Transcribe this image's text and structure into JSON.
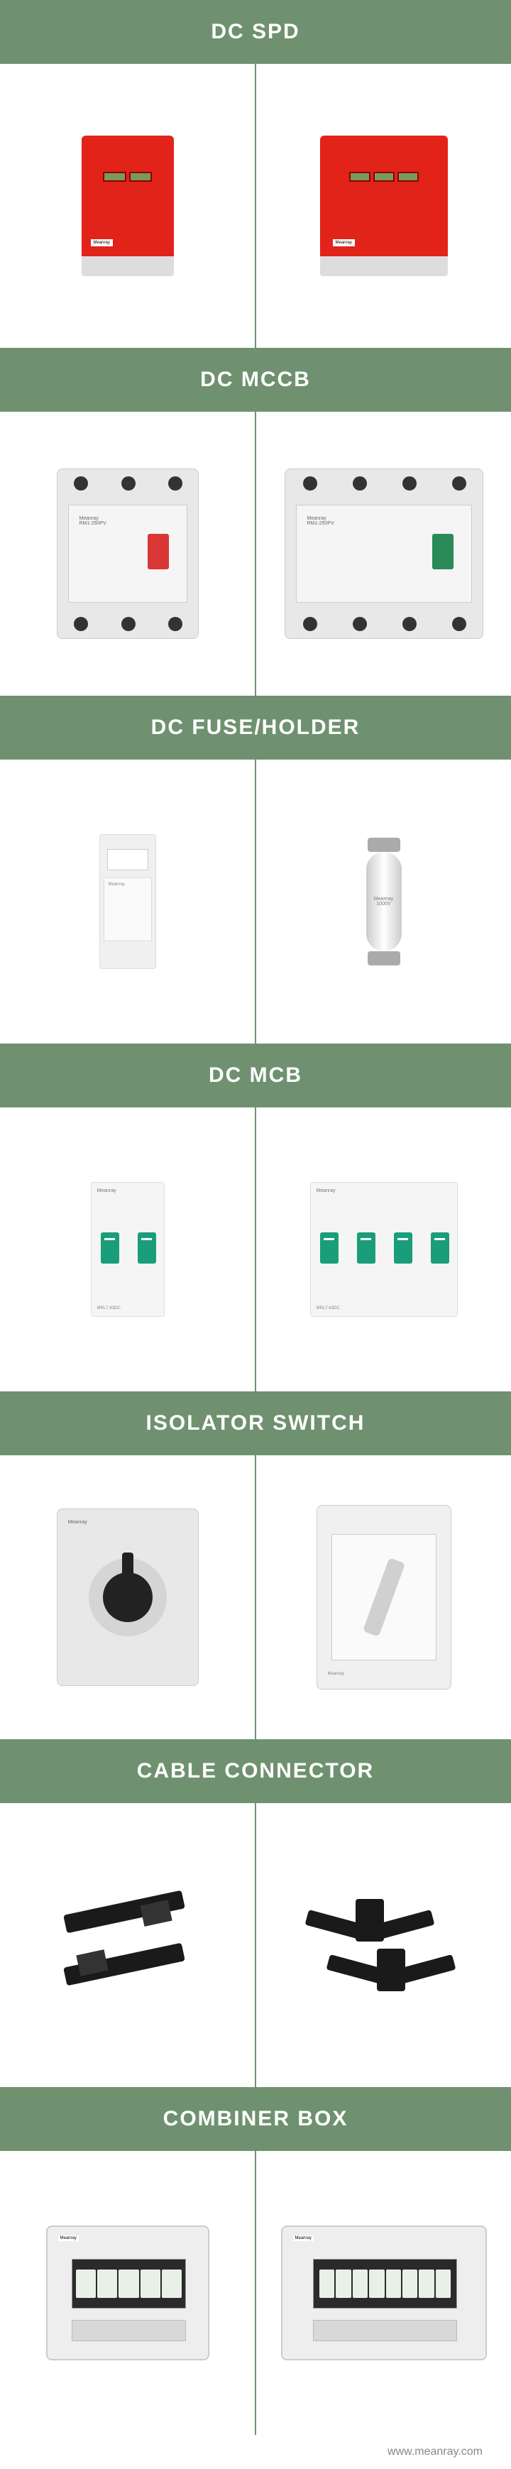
{
  "theme": {
    "header_bg": "#6f9170",
    "header_text": "#ffffff",
    "header_fontsize": "30px",
    "divider_color": "#6f9170",
    "footer_text": "www.meanray.com",
    "brand": "Meanray",
    "spd_color": "#e2231a",
    "mcb_accent": "#1a9e7a",
    "mccb_switch_red": "#d93636",
    "mccb_switch_green": "#2a8a5a"
  },
  "sections": [
    {
      "title": "DC SPD",
      "left": "spd2",
      "right": "spd3"
    },
    {
      "title": "DC MCCB",
      "left": "mccb3",
      "right": "mccb4"
    },
    {
      "title": "DC FUSE/HOLDER",
      "left": "fuseholder",
      "right": "fusetube"
    },
    {
      "title": "DC MCB",
      "left": "mcb2",
      "right": "mcb4"
    },
    {
      "title": "ISOLATOR SWITCH",
      "left": "isolator_knob",
      "right": "isolator_lever"
    },
    {
      "title": "CABLE CONNECTOR",
      "left": "connector_pair",
      "right": "connector_branch"
    },
    {
      "title": "COMBINER BOX",
      "left": "combiner_small",
      "right": "combiner_large"
    }
  ]
}
